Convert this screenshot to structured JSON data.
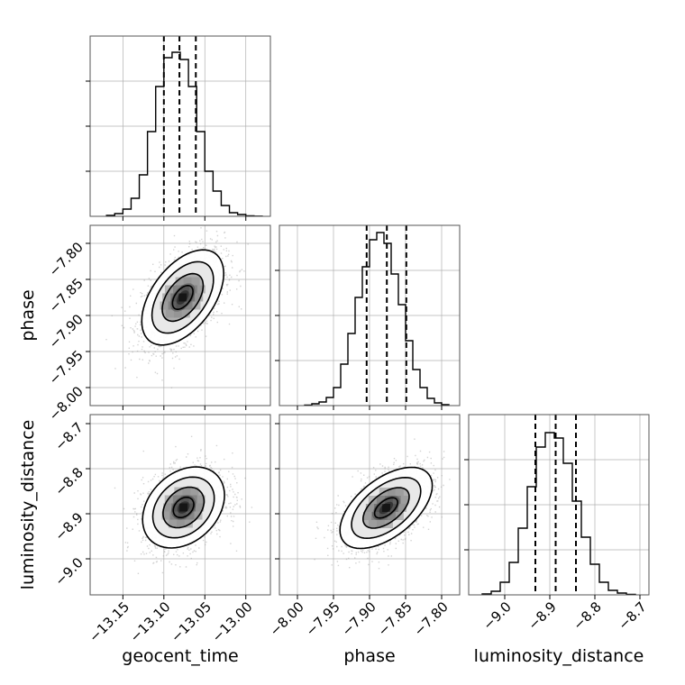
{
  "figure": {
    "parameters": [
      "geocent_time",
      "phase",
      "luminosity_distance"
    ],
    "colors": {
      "frame": "#555555",
      "grid": "#b0b0b0",
      "ink": "#000000",
      "sample": "#9e9e9e",
      "background": "#ffffff"
    }
  },
  "chart_data": [
    {
      "type": "histogram",
      "panel": "geocent_time",
      "xlim": [
        -13.19,
        -12.97
      ],
      "ylim": [
        0,
        1.0
      ],
      "bin_edges": [
        -13.17,
        -13.16,
        -13.15,
        -13.14,
        -13.13,
        -13.12,
        -13.11,
        -13.1,
        -13.09,
        -13.08,
        -13.07,
        -13.06,
        -13.05,
        -13.04,
        -13.03,
        -13.02,
        -13.01,
        -13.0,
        -12.99,
        -12.98
      ],
      "counts": [
        0.005,
        0.015,
        0.04,
        0.1,
        0.23,
        0.47,
        0.72,
        0.88,
        0.91,
        0.87,
        0.72,
        0.47,
        0.25,
        0.14,
        0.06,
        0.02,
        0.01,
        0.003,
        0.001
      ],
      "quantiles": [
        -13.1,
        -13.081,
        -13.061
      ],
      "grid": true
    },
    {
      "type": "scatter-density",
      "panel": "phase vs geocent_time",
      "xlim": [
        -13.19,
        -12.97
      ],
      "ylim": [
        -8.025,
        -7.775
      ],
      "center": [
        -13.077,
        -7.875
      ],
      "std": [
        0.025,
        0.033
      ],
      "correlation": 0.5,
      "contour_levels_sigma": [
        0.5,
        1.0,
        1.5,
        2.0
      ],
      "ylabel": "phase",
      "yticks": [
        -7.8,
        -7.85,
        -7.9,
        -7.95,
        -8.0
      ],
      "yticklabels": [
        "−7.80",
        "−7.85",
        "−7.90",
        "−7.95",
        "−8.00"
      ],
      "grid": true
    },
    {
      "type": "histogram",
      "panel": "phase",
      "xlim": [
        -8.025,
        -7.775
      ],
      "ylim": [
        0,
        1.0
      ],
      "bin_edges": [
        -7.99,
        -7.98,
        -7.97,
        -7.96,
        -7.95,
        -7.94,
        -7.93,
        -7.92,
        -7.91,
        -7.9,
        -7.89,
        -7.88,
        -7.87,
        -7.86,
        -7.85,
        -7.84,
        -7.83,
        -7.82,
        -7.81,
        -7.8,
        -7.79
      ],
      "counts": [
        0.003,
        0.01,
        0.02,
        0.045,
        0.1,
        0.23,
        0.4,
        0.6,
        0.77,
        0.92,
        0.96,
        0.9,
        0.73,
        0.56,
        0.36,
        0.2,
        0.1,
        0.04,
        0.015,
        0.005
      ],
      "quantiles": [
        -7.904,
        -7.876,
        -7.849
      ],
      "grid": true
    },
    {
      "type": "scatter-density",
      "panel": "luminosity_distance vs geocent_time",
      "xlim": [
        -13.19,
        -12.97
      ],
      "ylim": [
        -9.08,
        -8.68
      ],
      "center": [
        -13.076,
        -8.886
      ],
      "std": [
        0.025,
        0.045
      ],
      "correlation": 0.3,
      "contour_levels_sigma": [
        0.5,
        1.0,
        1.5,
        2.0
      ],
      "xlabel": "geocent_time",
      "xticks": [
        -13.15,
        -13.1,
        -13.05,
        -13.0
      ],
      "xticklabels": [
        "−13.15",
        "−13.10",
        "−13.05",
        "−13.00"
      ],
      "ylabel": "luminosity_distance",
      "yticks": [
        -8.7,
        -8.8,
        -8.9,
        -9.0
      ],
      "yticklabels": [
        "−8.7",
        "−8.8",
        "−8.9",
        "−9.0"
      ],
      "grid": true
    },
    {
      "type": "scatter-density",
      "panel": "luminosity_distance vs phase",
      "xlim": [
        -8.025,
        -7.775
      ],
      "ylim": [
        -9.08,
        -8.68
      ],
      "center": [
        -7.877,
        -8.887
      ],
      "std": [
        0.032,
        0.045
      ],
      "correlation": 0.55,
      "contour_levels_sigma": [
        0.5,
        1.0,
        1.5,
        2.0
      ],
      "xlabel": "phase",
      "xticks": [
        -8.0,
        -7.95,
        -7.9,
        -7.85,
        -7.8
      ],
      "xticklabels": [
        "−8.00",
        "−7.95",
        "−7.90",
        "−7.85",
        "−7.80"
      ],
      "grid": true
    },
    {
      "type": "histogram",
      "panel": "luminosity_distance",
      "xlim": [
        -9.08,
        -8.68
      ],
      "ylim": [
        0,
        1.0
      ],
      "bin_edges": [
        -9.05,
        -9.03,
        -9.01,
        -8.99,
        -8.97,
        -8.95,
        -8.93,
        -8.91,
        -8.89,
        -8.87,
        -8.85,
        -8.83,
        -8.81,
        -8.79,
        -8.77,
        -8.75,
        -8.73,
        -8.71
      ],
      "counts": [
        0.005,
        0.02,
        0.07,
        0.18,
        0.37,
        0.6,
        0.82,
        0.9,
        0.87,
        0.73,
        0.52,
        0.32,
        0.17,
        0.07,
        0.025,
        0.01,
        0.003
      ],
      "quantiles": [
        -8.932,
        -8.887,
        -8.842
      ],
      "xlabel": "luminosity_distance",
      "xticks": [
        -9.0,
        -8.9,
        -8.8,
        -8.7
      ],
      "xticklabels": [
        "−9.0",
        "−8.9",
        "−8.8",
        "−8.7"
      ],
      "grid": true
    }
  ]
}
